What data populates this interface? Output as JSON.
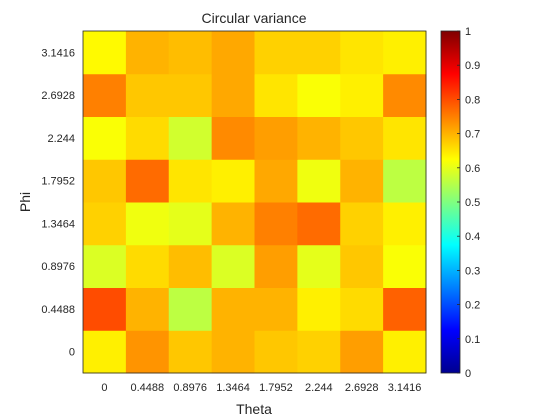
{
  "chart_data": {
    "type": "heatmap",
    "title": "Circular variance",
    "xlabel": "Theta",
    "ylabel": "Phi",
    "x": [
      "0",
      "0.4488",
      "0.8976",
      "1.3464",
      "1.7952",
      "2.244",
      "2.6928",
      "3.1416"
    ],
    "y": [
      "0",
      "0.4488",
      "0.8976",
      "1.3464",
      "1.7952",
      "2.244",
      "2.6928",
      "3.1416"
    ],
    "values": [
      [
        0.64,
        0.73,
        0.68,
        0.7,
        0.68,
        0.67,
        0.72,
        0.64
      ],
      [
        0.8,
        0.7,
        0.56,
        0.7,
        0.7,
        0.64,
        0.66,
        0.78
      ],
      [
        0.59,
        0.66,
        0.69,
        0.59,
        0.72,
        0.6,
        0.68,
        0.62
      ],
      [
        0.67,
        0.61,
        0.6,
        0.7,
        0.75,
        0.77,
        0.67,
        0.64
      ],
      [
        0.68,
        0.77,
        0.65,
        0.64,
        0.71,
        0.61,
        0.7,
        0.56
      ],
      [
        0.62,
        0.66,
        0.58,
        0.74,
        0.72,
        0.7,
        0.68,
        0.65
      ],
      [
        0.75,
        0.68,
        0.68,
        0.71,
        0.65,
        0.62,
        0.64,
        0.74
      ],
      [
        0.63,
        0.7,
        0.69,
        0.71,
        0.67,
        0.67,
        0.65,
        0.64
      ]
    ],
    "colorbar": {
      "colormap": "jet",
      "range": [
        0,
        1
      ],
      "ticks": [
        "0",
        "0.1",
        "0.2",
        "0.3",
        "0.4",
        "0.5",
        "0.6",
        "0.7",
        "0.8",
        "0.9",
        "1"
      ]
    },
    "grid": false,
    "legend": "none"
  }
}
